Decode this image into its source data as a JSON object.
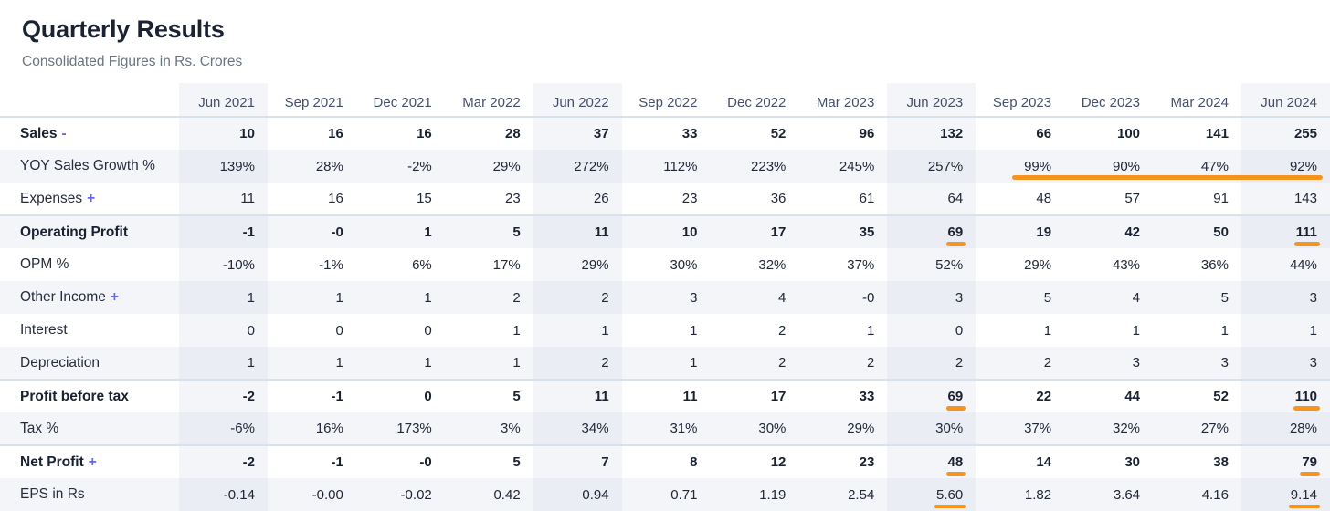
{
  "page": {
    "title": "Quarterly Results",
    "subtitle": "Consolidated Figures in Rs. Crores"
  },
  "colors": {
    "annotation_orange": "#f7941e",
    "toggle_indigo": "#6366f1",
    "column_highlight": "#f4f5f9",
    "row_stripe": "#f4f5f9",
    "section_border": "#d9e1ec"
  },
  "table": {
    "columns": [
      "Jun 2021",
      "Sep 2021",
      "Dec 2021",
      "Mar 2022",
      "Jun 2022",
      "Sep 2022",
      "Dec 2022",
      "Mar 2023",
      "Jun 2023",
      "Sep 2023",
      "Dec 2023",
      "Mar 2024",
      "Jun 2024"
    ],
    "highlighted_column_indices": [
      0,
      4,
      8,
      12
    ],
    "rows": [
      {
        "label": "Sales",
        "toggle": "-",
        "bold": true,
        "values": [
          "10",
          "16",
          "16",
          "28",
          "37",
          "33",
          "52",
          "96",
          "132",
          "66",
          "100",
          "141",
          "255"
        ]
      },
      {
        "label": "YOY Sales Growth %",
        "values": [
          "139%",
          "28%",
          "-2%",
          "29%",
          "272%",
          "112%",
          "223%",
          "245%",
          "257%",
          "99%",
          "90%",
          "47%",
          "92%"
        ]
      },
      {
        "label": "Expenses",
        "toggle": "+",
        "values": [
          "11",
          "16",
          "15",
          "23",
          "26",
          "23",
          "36",
          "61",
          "64",
          "48",
          "57",
          "91",
          "143"
        ]
      },
      {
        "label": "Operating Profit",
        "bold": true,
        "section_start": true,
        "underline_cols": [
          8,
          12
        ],
        "values": [
          "-1",
          "-0",
          "1",
          "5",
          "11",
          "10",
          "17",
          "35",
          "69",
          "19",
          "42",
          "50",
          "111"
        ]
      },
      {
        "label": "OPM %",
        "values": [
          "-10%",
          "-1%",
          "6%",
          "17%",
          "29%",
          "30%",
          "32%",
          "37%",
          "52%",
          "29%",
          "43%",
          "36%",
          "44%"
        ]
      },
      {
        "label": "Other Income",
        "toggle": "+",
        "values": [
          "1",
          "1",
          "1",
          "2",
          "2",
          "3",
          "4",
          "-0",
          "3",
          "5",
          "4",
          "5",
          "3"
        ]
      },
      {
        "label": "Interest",
        "values": [
          "0",
          "0",
          "0",
          "1",
          "1",
          "1",
          "2",
          "1",
          "0",
          "1",
          "1",
          "1",
          "1"
        ]
      },
      {
        "label": "Depreciation",
        "values": [
          "1",
          "1",
          "1",
          "1",
          "2",
          "1",
          "2",
          "2",
          "2",
          "2",
          "3",
          "3",
          "3"
        ]
      },
      {
        "label": "Profit before tax",
        "bold": true,
        "section_start": true,
        "underline_cols": [
          8,
          12
        ],
        "values": [
          "-2",
          "-1",
          "0",
          "5",
          "11",
          "11",
          "17",
          "33",
          "69",
          "22",
          "44",
          "52",
          "110"
        ]
      },
      {
        "label": "Tax %",
        "values": [
          "-6%",
          "16%",
          "173%",
          "3%",
          "34%",
          "31%",
          "30%",
          "29%",
          "30%",
          "37%",
          "32%",
          "27%",
          "28%"
        ]
      },
      {
        "label": "Net Profit",
        "toggle": "+",
        "bold": true,
        "section_start": true,
        "underline_cols": [
          8,
          12
        ],
        "values": [
          "-2",
          "-1",
          "-0",
          "5",
          "7",
          "8",
          "12",
          "23",
          "48",
          "14",
          "30",
          "38",
          "79"
        ]
      },
      {
        "label": "EPS in Rs",
        "underline_cols": [
          8,
          12
        ],
        "values": [
          "-0.14",
          "-0.00",
          "-0.02",
          "0.42",
          "0.94",
          "0.71",
          "1.19",
          "2.54",
          "5.60",
          "1.82",
          "3.64",
          "4.16",
          "9.14"
        ]
      }
    ],
    "annotation": {
      "description": "orange highlight line under YOY Sales Growth % from Sep 2023 through Jun 2024"
    }
  }
}
